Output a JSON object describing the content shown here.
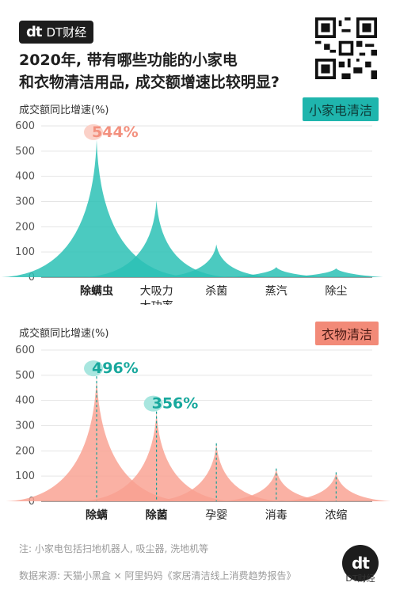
{
  "brand": {
    "mark": "dt",
    "name": "DT财经"
  },
  "headline": {
    "line1": "2020年, 带有哪些功能的小家电",
    "line2": "和衣物清洁用品, 成交额增速比较明显?"
  },
  "colors": {
    "teal": "#2cc1b5",
    "salmon": "#f9a090",
    "peak_label": "#f3917f",
    "teal_label": "#18a89d"
  },
  "chart_data": [
    {
      "type": "area",
      "id": "small-appliance",
      "tag": "小家电清洁",
      "ylabel": "成交额同比增速(%)",
      "ylim": [
        0,
        600
      ],
      "yticks": [
        0,
        100,
        200,
        300,
        400,
        500,
        600
      ],
      "categories": [
        "除螨虫",
        "大吸力\n大功率",
        "杀菌",
        "蒸汽",
        "除尘"
      ],
      "values": [
        544,
        305,
        130,
        40,
        35
      ],
      "highlight": {
        "index": 0,
        "label": "544%"
      }
    },
    {
      "type": "area",
      "id": "laundry",
      "tag": "衣物清洁",
      "ylabel": "成交额同比增速(%)",
      "ylim": [
        0,
        600
      ],
      "yticks": [
        0,
        100,
        200,
        300,
        400,
        500,
        600
      ],
      "categories": [
        "除螨",
        "除菌",
        "孕婴",
        "消毒",
        "浓缩"
      ],
      "values": [
        496,
        356,
        230,
        130,
        115
      ],
      "highlights": [
        {
          "index": 0,
          "label": "496%"
        },
        {
          "index": 1,
          "label": "356%"
        }
      ]
    }
  ],
  "note": "注: 小家电包括扫地机器人, 吸尘器, 洗地机等",
  "source": "数据来源: 天猫小黑盒 × 阿里妈妈《家居清洁线上消费趋势报告》"
}
